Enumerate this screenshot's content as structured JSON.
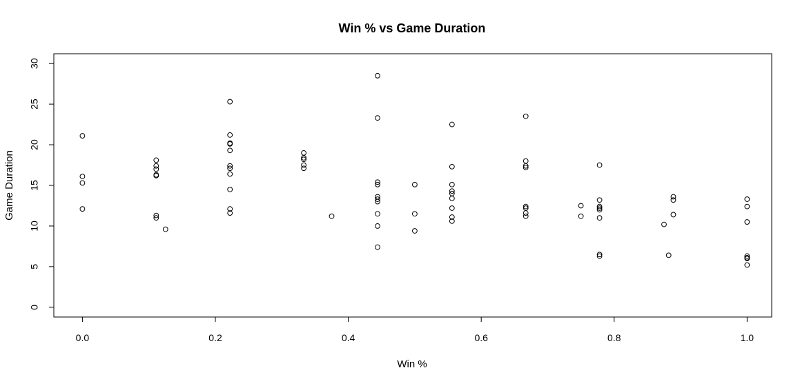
{
  "chart_data": {
    "type": "scatter",
    "title": "Win % vs Game Duration",
    "xlabel": "Win %",
    "ylabel": "Game Duration",
    "xlim": [
      -0.043,
      1.037
    ],
    "ylim": [
      -1.2,
      31.2
    ],
    "x_ticks": [
      0.0,
      0.2,
      0.4,
      0.6,
      0.8,
      1.0
    ],
    "x_tick_labels": [
      "0.0",
      "0.2",
      "0.4",
      "0.6",
      "0.8",
      "1.0"
    ],
    "y_ticks": [
      0,
      5,
      10,
      15,
      20,
      25,
      30
    ],
    "y_tick_labels": [
      "0",
      "5",
      "10",
      "15",
      "20",
      "25",
      "30"
    ],
    "grid": false,
    "legend": "none",
    "marker": "open-circle",
    "points": [
      {
        "x": 0.0,
        "y": 21.1
      },
      {
        "x": 0.0,
        "y": 16.1
      },
      {
        "x": 0.0,
        "y": 15.3
      },
      {
        "x": 0.0,
        "y": 12.1
      },
      {
        "x": 0.111,
        "y": 18.1
      },
      {
        "x": 0.111,
        "y": 17.4
      },
      {
        "x": 0.111,
        "y": 17.0
      },
      {
        "x": 0.111,
        "y": 16.3
      },
      {
        "x": 0.111,
        "y": 16.2
      },
      {
        "x": 0.111,
        "y": 11.3
      },
      {
        "x": 0.111,
        "y": 11.0
      },
      {
        "x": 0.125,
        "y": 9.6
      },
      {
        "x": 0.222,
        "y": 25.3
      },
      {
        "x": 0.222,
        "y": 21.2
      },
      {
        "x": 0.222,
        "y": 20.2
      },
      {
        "x": 0.222,
        "y": 20.1
      },
      {
        "x": 0.222,
        "y": 19.3
      },
      {
        "x": 0.222,
        "y": 17.4
      },
      {
        "x": 0.222,
        "y": 17.1
      },
      {
        "x": 0.222,
        "y": 16.4
      },
      {
        "x": 0.222,
        "y": 14.5
      },
      {
        "x": 0.222,
        "y": 12.1
      },
      {
        "x": 0.222,
        "y": 11.6
      },
      {
        "x": 0.333,
        "y": 19.0
      },
      {
        "x": 0.333,
        "y": 18.4
      },
      {
        "x": 0.333,
        "y": 18.2
      },
      {
        "x": 0.333,
        "y": 17.5
      },
      {
        "x": 0.333,
        "y": 17.1
      },
      {
        "x": 0.375,
        "y": 11.2
      },
      {
        "x": 0.444,
        "y": 28.5
      },
      {
        "x": 0.444,
        "y": 23.3
      },
      {
        "x": 0.444,
        "y": 15.4
      },
      {
        "x": 0.444,
        "y": 15.1
      },
      {
        "x": 0.444,
        "y": 13.6
      },
      {
        "x": 0.444,
        "y": 13.3
      },
      {
        "x": 0.444,
        "y": 13.0
      },
      {
        "x": 0.444,
        "y": 11.5
      },
      {
        "x": 0.444,
        "y": 10.0
      },
      {
        "x": 0.444,
        "y": 7.4
      },
      {
        "x": 0.5,
        "y": 15.1
      },
      {
        "x": 0.5,
        "y": 11.5
      },
      {
        "x": 0.5,
        "y": 9.4
      },
      {
        "x": 0.556,
        "y": 22.5
      },
      {
        "x": 0.556,
        "y": 17.3
      },
      {
        "x": 0.556,
        "y": 15.1
      },
      {
        "x": 0.556,
        "y": 14.3
      },
      {
        "x": 0.556,
        "y": 14.0
      },
      {
        "x": 0.556,
        "y": 13.4
      },
      {
        "x": 0.556,
        "y": 12.2
      },
      {
        "x": 0.556,
        "y": 11.1
      },
      {
        "x": 0.556,
        "y": 10.6
      },
      {
        "x": 0.667,
        "y": 23.5
      },
      {
        "x": 0.667,
        "y": 18.0
      },
      {
        "x": 0.667,
        "y": 17.4
      },
      {
        "x": 0.667,
        "y": 17.2
      },
      {
        "x": 0.667,
        "y": 12.4
      },
      {
        "x": 0.667,
        "y": 12.2
      },
      {
        "x": 0.667,
        "y": 11.6
      },
      {
        "x": 0.667,
        "y": 11.2
      },
      {
        "x": 0.75,
        "y": 12.5
      },
      {
        "x": 0.75,
        "y": 11.2
      },
      {
        "x": 0.778,
        "y": 17.5
      },
      {
        "x": 0.778,
        "y": 13.2
      },
      {
        "x": 0.778,
        "y": 12.4
      },
      {
        "x": 0.778,
        "y": 12.2
      },
      {
        "x": 0.778,
        "y": 12.0
      },
      {
        "x": 0.778,
        "y": 11.0
      },
      {
        "x": 0.778,
        "y": 6.5
      },
      {
        "x": 0.778,
        "y": 6.3
      },
      {
        "x": 0.875,
        "y": 10.2
      },
      {
        "x": 0.882,
        "y": 6.4
      },
      {
        "x": 0.889,
        "y": 13.6
      },
      {
        "x": 0.889,
        "y": 13.2
      },
      {
        "x": 0.889,
        "y": 11.4
      },
      {
        "x": 1.0,
        "y": 13.3
      },
      {
        "x": 1.0,
        "y": 12.4
      },
      {
        "x": 1.0,
        "y": 10.5
      },
      {
        "x": 1.0,
        "y": 6.3
      },
      {
        "x": 1.0,
        "y": 6.1
      },
      {
        "x": 1.0,
        "y": 6.0
      },
      {
        "x": 1.0,
        "y": 5.2
      }
    ]
  }
}
